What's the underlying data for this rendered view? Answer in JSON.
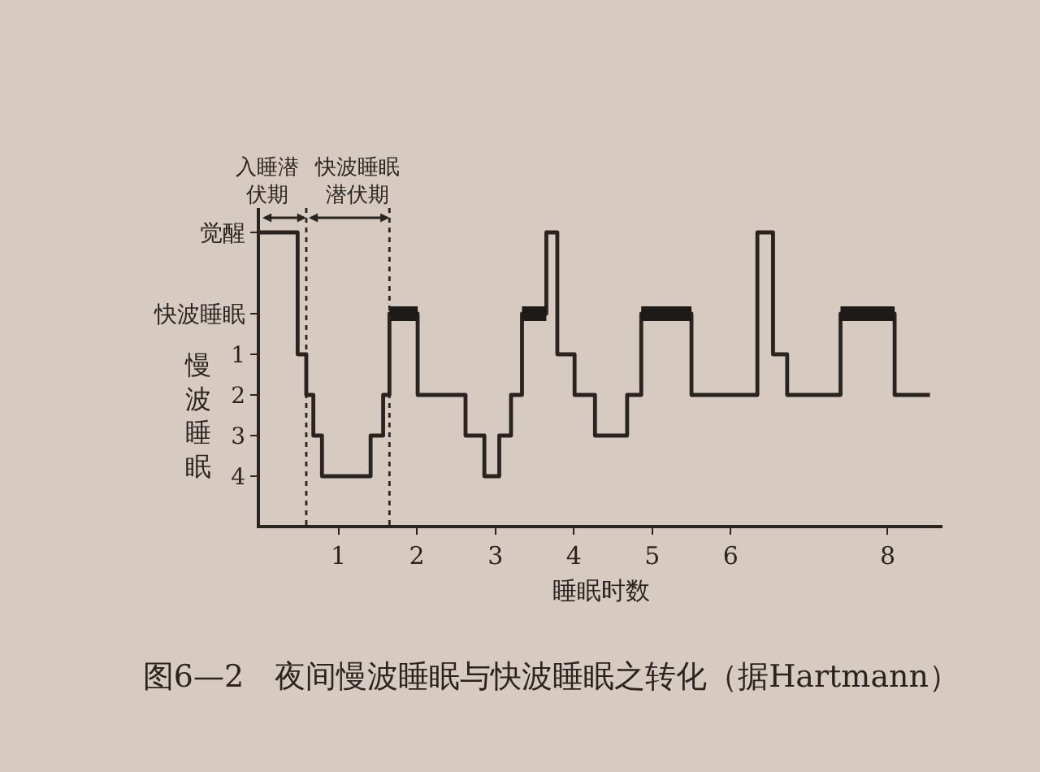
{
  "chart_data": {
    "type": "step",
    "title": "图6—2　夜间慢波睡眠与快波睡眠之转化（据Hartmann）",
    "xlabel": "睡眠时数",
    "ylabel": "慢波睡眠",
    "x": [
      0,
      0.48,
      0.59,
      0.68,
      0.79,
      1.41,
      1.57,
      1.65,
      2.01,
      2.62,
      2.86,
      3.05,
      3.2,
      3.34,
      3.65,
      3.79,
      4.01,
      4.27,
      4.68,
      4.86,
      5.5,
      6.34,
      6.54,
      6.72,
      7.4,
      8.09,
      8.54
    ],
    "series": [
      {
        "color": "#2a2421",
        "values": [
          -2,
          1,
          2,
          3,
          4,
          3,
          2,
          0,
          2,
          3,
          4,
          3,
          2,
          0,
          -2,
          1,
          2,
          3,
          2,
          0,
          2,
          -2,
          1,
          2,
          0,
          2,
          2
        ]
      },
      {
        "type": "line",
        "color": "#1e1a18",
        "x": [
          1.65,
          2.01,
          null,
          3.34,
          3.65,
          null,
          4.86,
          5.5,
          null,
          7.4,
          8.09
        ],
        "values": [
          0,
          0,
          null,
          0,
          0,
          null,
          0,
          0,
          null,
          0,
          0
        ]
      }
    ],
    "xlim": [
      0,
      8.7
    ],
    "xticks": [
      1,
      2,
      3,
      4,
      5,
      6,
      8
    ],
    "ylim": [
      5.2,
      -2.6
    ],
    "yticks": [
      {
        "value": -2,
        "label": "觉醒"
      },
      {
        "value": 0,
        "label": "快波睡眠"
      },
      1,
      2,
      3,
      4
    ],
    "ref_lines": [
      {
        "axis": "x",
        "value": 0.59,
        "line_style": "dotted",
        "color": "#2a2421"
      },
      {
        "axis": "x",
        "value": 1.65,
        "line_style": "dotted",
        "color": "#2a2421"
      }
    ],
    "annotations": [
      {
        "text": "入睡潜伏期",
        "x": 0.59,
        "y": -2
      },
      {
        "text": "快波睡眠潜伏期",
        "x": 1.65,
        "y": -2
      }
    ]
  }
}
